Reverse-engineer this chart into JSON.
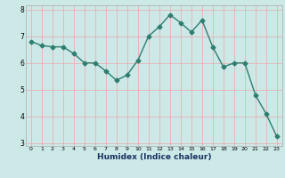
{
  "x": [
    0,
    1,
    2,
    3,
    4,
    5,
    6,
    7,
    8,
    9,
    10,
    11,
    12,
    13,
    14,
    15,
    16,
    17,
    18,
    19,
    20,
    21,
    22,
    23
  ],
  "y": [
    6.8,
    6.65,
    6.6,
    6.6,
    6.35,
    6.0,
    6.0,
    5.7,
    5.35,
    5.55,
    6.1,
    7.0,
    7.35,
    7.8,
    7.5,
    7.15,
    7.6,
    6.6,
    5.85,
    6.0,
    6.0,
    4.8,
    4.1,
    3.25
  ],
  "line_color": "#2e7d6e",
  "marker": "D",
  "marker_size": 2.5,
  "bg_color": "#cce9e8",
  "grid_color": "#e8b0b0",
  "xlabel": "Humidex (Indice chaleur)",
  "ylim": [
    3,
    8
  ],
  "xlim": [
    -0.5,
    23.5
  ],
  "yticks": [
    3,
    4,
    5,
    6,
    7,
    8
  ],
  "xticks": [
    0,
    1,
    2,
    3,
    4,
    5,
    6,
    7,
    8,
    9,
    10,
    11,
    12,
    13,
    14,
    15,
    16,
    17,
    18,
    19,
    20,
    21,
    22,
    23
  ]
}
